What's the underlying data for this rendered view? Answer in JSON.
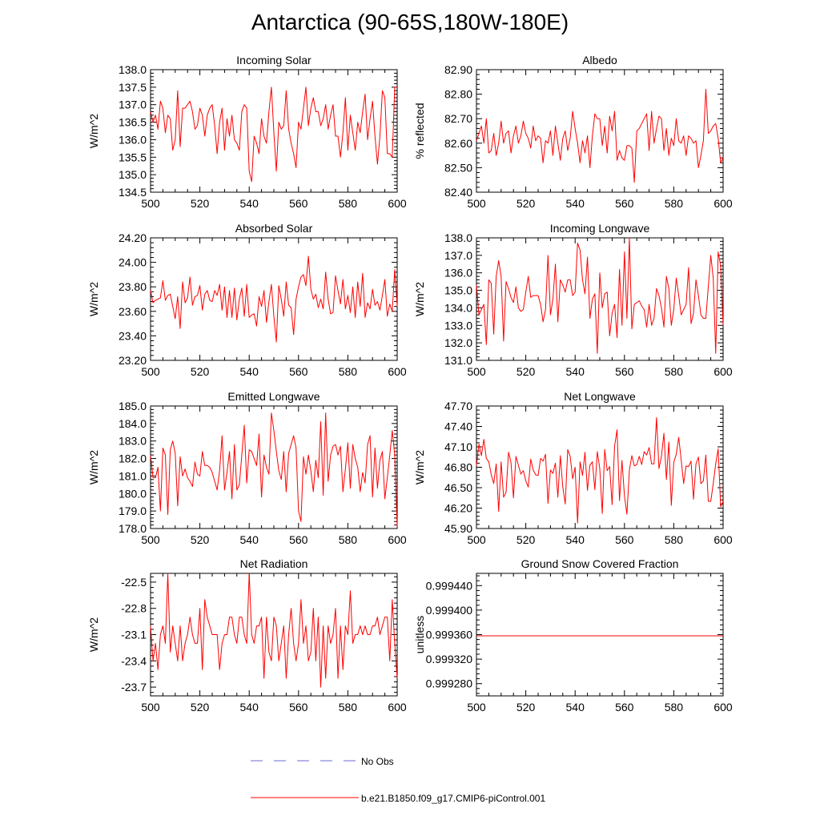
{
  "title": "Antarctica (90-65S,180W-180E)",
  "colors": {
    "series": "#ff0000",
    "obs": "#6b6bd6",
    "axis": "#000000"
  },
  "legend": {
    "obs_label": "No Obs",
    "model_label": "b.e21.B1850.f09_g17.CMIP6-piControl.001"
  },
  "chart_data": [
    {
      "type": "line",
      "title": "Incoming Solar",
      "ylabel": "W/m^2",
      "xlim": [
        500,
        600
      ],
      "ylim": [
        134.5,
        138.0
      ],
      "xticks": [
        500,
        520,
        540,
        560,
        580,
        600
      ],
      "yticks": [
        134.5,
        135.0,
        135.5,
        136.0,
        136.5,
        137.0,
        137.5,
        138.0
      ],
      "ytick_labels": [
        "134.5",
        "135.0",
        "135.5",
        "136.0",
        "136.5",
        "137.0",
        "137.5",
        "138.0"
      ],
      "x_start": 500,
      "values": [
        136.8,
        136.5,
        136.7,
        136.3,
        137.1,
        136.9,
        136.2,
        136.7,
        136.6,
        135.7,
        136.0,
        137.4,
        135.8,
        136.9,
        136.9,
        137.0,
        137.1,
        136.8,
        136.3,
        136.4,
        136.9,
        136.7,
        136.1,
        136.7,
        136.9,
        137.0,
        136.4,
        135.6,
        136.5,
        136.9,
        135.7,
        136.6,
        136.1,
        136.7,
        136.0,
        135.9,
        135.7,
        136.8,
        137.0,
        136.9,
        135.1,
        134.8,
        136.1,
        135.9,
        135.6,
        136.6,
        136.1,
        135.9,
        136.8,
        137.5,
        136.2,
        135.1,
        136.5,
        136.3,
        136.4,
        137.4,
        136.3,
        135.9,
        135.6,
        135.2,
        136.5,
        136.3,
        136.9,
        137.5,
        136.4,
        136.9,
        137.2,
        136.8,
        136.8,
        136.4,
        136.6,
        137.0,
        136.3,
        136.7,
        137.0,
        136.1,
        136.1,
        135.5,
        136.2,
        137.2,
        135.7,
        136.7,
        136.2,
        135.7,
        136.5,
        136.2,
        136.8,
        137.3,
        136.0,
        136.6,
        137.1,
        136.1,
        135.3,
        136.1,
        137.4,
        137.2,
        135.6,
        135.6,
        135.5,
        137.5,
        137.5
      ]
    },
    {
      "type": "line",
      "title": "Albedo",
      "ylabel": "% reflected",
      "xlim": [
        500,
        600
      ],
      "ylim": [
        82.4,
        82.9
      ],
      "xticks": [
        500,
        520,
        540,
        560,
        580,
        600
      ],
      "yticks": [
        82.4,
        82.5,
        82.6,
        82.7,
        82.8,
        82.9
      ],
      "ytick_labels": [
        "82.40",
        "82.50",
        "82.60",
        "82.70",
        "82.80",
        "82.90"
      ],
      "x_start": 500,
      "values": [
        82.61,
        82.64,
        82.67,
        82.6,
        82.7,
        82.56,
        82.57,
        82.64,
        82.55,
        82.6,
        82.69,
        82.6,
        82.64,
        82.65,
        82.56,
        82.63,
        82.67,
        82.6,
        82.63,
        82.69,
        82.64,
        82.62,
        82.58,
        82.67,
        82.61,
        82.63,
        82.62,
        82.52,
        82.61,
        82.6,
        82.65,
        82.55,
        82.67,
        82.6,
        82.53,
        82.62,
        82.65,
        82.57,
        82.62,
        82.73,
        82.66,
        82.6,
        82.52,
        82.61,
        82.56,
        82.63,
        82.5,
        82.63,
        82.72,
        82.7,
        82.7,
        82.59,
        82.67,
        82.56,
        82.71,
        82.65,
        82.73,
        82.53,
        82.57,
        82.54,
        82.53,
        82.59,
        82.59,
        82.58,
        82.44,
        82.65,
        82.66,
        82.68,
        82.7,
        82.72,
        82.57,
        82.73,
        82.6,
        82.66,
        82.71,
        82.7,
        82.57,
        82.66,
        82.55,
        82.62,
        82.59,
        82.7,
        82.61,
        82.6,
        82.63,
        82.55,
        82.63,
        82.62,
        82.6,
        82.61,
        82.5,
        82.55,
        82.61,
        82.82,
        82.64,
        82.65,
        82.67,
        82.68,
        82.62,
        82.52,
        82.54
      ]
    },
    {
      "type": "line",
      "title": "Absorbed Solar",
      "ylabel": "W/m^2",
      "xlim": [
        500,
        600
      ],
      "ylim": [
        23.2,
        24.2
      ],
      "xticks": [
        500,
        520,
        540,
        560,
        580,
        600
      ],
      "yticks": [
        23.2,
        23.4,
        23.6,
        23.8,
        24.0,
        24.2
      ],
      "ytick_labels": [
        "23.20",
        "23.40",
        "23.60",
        "23.80",
        "24.00",
        "24.20"
      ],
      "x_start": 500,
      "values": [
        23.77,
        23.67,
        23.69,
        23.7,
        23.71,
        23.85,
        23.69,
        23.73,
        23.74,
        23.64,
        23.54,
        23.72,
        23.46,
        23.84,
        23.67,
        23.71,
        23.88,
        23.65,
        23.72,
        23.73,
        23.81,
        23.61,
        23.74,
        23.77,
        23.69,
        23.68,
        23.77,
        23.73,
        23.82,
        23.61,
        23.8,
        23.55,
        23.77,
        23.55,
        23.79,
        23.53,
        23.7,
        23.79,
        23.56,
        23.82,
        23.55,
        23.57,
        23.58,
        23.48,
        23.72,
        23.64,
        23.77,
        23.51,
        23.68,
        23.82,
        23.56,
        23.35,
        23.81,
        23.7,
        23.56,
        23.84,
        23.65,
        23.63,
        23.41,
        23.7,
        23.8,
        23.88,
        23.9,
        23.81,
        24.05,
        23.78,
        23.7,
        23.74,
        23.63,
        23.7,
        23.62,
        23.92,
        23.7,
        23.58,
        23.59,
        23.89,
        23.77,
        23.66,
        23.86,
        23.62,
        23.73,
        23.59,
        23.8,
        23.55,
        23.84,
        23.64,
        23.91,
        23.55,
        23.67,
        23.62,
        23.78,
        23.65,
        23.68,
        23.61,
        23.73,
        23.86,
        23.56,
        23.66,
        23.6,
        23.94,
        23.64
      ]
    },
    {
      "type": "line",
      "title": "Incoming Longwave",
      "ylabel": "W/m^2",
      "xlim": [
        500,
        600
      ],
      "ylim": [
        131.0,
        138.0
      ],
      "xticks": [
        500,
        520,
        540,
        560,
        580,
        600
      ],
      "yticks": [
        131.0,
        132.0,
        133.0,
        134.0,
        135.0,
        136.0,
        137.0,
        138.0
      ],
      "ytick_labels": [
        "131.0",
        "132.0",
        "133.0",
        "134.0",
        "135.0",
        "136.0",
        "137.0",
        "138.0"
      ],
      "x_start": 500,
      "values": [
        135.3,
        133.6,
        133.9,
        134.2,
        131.9,
        135.6,
        135.4,
        132.5,
        135.8,
        136.7,
        135.8,
        132.1,
        135.5,
        135.1,
        134.6,
        134.3,
        135.2,
        134.0,
        133.8,
        133.9,
        134.9,
        135.8,
        134.6,
        134.7,
        134.7,
        134.7,
        134.2,
        133.2,
        133.9,
        137.0,
        133.6,
        134.5,
        136.5,
        133.2,
        135.6,
        135.3,
        134.9,
        135.6,
        135.6,
        134.7,
        134.9,
        137.7,
        137.3,
        135.6,
        134.8,
        136.9,
        133.4,
        134.5,
        134.8,
        131.4,
        136.0,
        134.0,
        134.8,
        134.9,
        132.4,
        133.7,
        134.2,
        132.3,
        136.2,
        133.0,
        137.2,
        133.4,
        138.0,
        132.8,
        134.2,
        134.3,
        134.4,
        134.1,
        133.9,
        132.9,
        134.2,
        133.0,
        133.4,
        135.1,
        134.7,
        134.0,
        132.9,
        135.8,
        135.1,
        133.0,
        133.9,
        135.7,
        134.7,
        133.6,
        133.9,
        134.2,
        136.3,
        133.1,
        133.7,
        135.6,
        134.7,
        133.6,
        133.4,
        133.4,
        135.2,
        137.0,
        135.7,
        131.4,
        137.2,
        136.4,
        133.0
      ]
    },
    {
      "type": "line",
      "title": "Emitted Longwave",
      "ylabel": "W/m^2",
      "xlim": [
        500,
        600
      ],
      "ylim": [
        178.0,
        185.0
      ],
      "xticks": [
        500,
        520,
        540,
        560,
        580,
        600
      ],
      "yticks": [
        178.0,
        179.0,
        180.0,
        181.0,
        182.0,
        183.0,
        184.0,
        185.0
      ],
      "ytick_labels": [
        "178.0",
        "179.0",
        "180.0",
        "181.0",
        "182.0",
        "183.0",
        "184.0",
        "185.0"
      ],
      "x_start": 500,
      "values": [
        182.2,
        180.9,
        180.9,
        181.5,
        179.0,
        182.6,
        182.2,
        178.8,
        182.5,
        183.0,
        182.3,
        179.3,
        182.1,
        181.0,
        181.4,
        180.9,
        180.7,
        180.4,
        181.8,
        181.1,
        181.0,
        182.4,
        181.6,
        181.6,
        181.5,
        181.2,
        180.7,
        180.2,
        181.3,
        183.3,
        180.2,
        181.2,
        182.4,
        179.7,
        182.8,
        180.2,
        180.5,
        182.2,
        183.9,
        180.6,
        182.5,
        182.4,
        182.0,
        181.6,
        183.4,
        179.8,
        182.2,
        181.5,
        181.1,
        184.6,
        183.6,
        182.4,
        181.3,
        180.8,
        182.4,
        180.1,
        182.3,
        182.8,
        183.3,
        182.6,
        179.0,
        178.4,
        182.1,
        181.1,
        182.2,
        181.3,
        180.1,
        181.9,
        180.9,
        184.1,
        179.9,
        184.6,
        180.7,
        182.2,
        182.7,
        182.8,
        182.2,
        182.7,
        180.1,
        181.4,
        182.9,
        180.3,
        182.8,
        182.0,
        181.5,
        180.1,
        181.2,
        180.6,
        182.8,
        183.3,
        179.8,
        182.6,
        180.3,
        181.9,
        182.4,
        179.7,
        180.9,
        182.2,
        183.6,
        182.2,
        178.1
      ]
    },
    {
      "type": "line",
      "title": "Net Longwave",
      "ylabel": "W/m^2",
      "xlim": [
        500,
        600
      ],
      "ylim": [
        45.9,
        47.7
      ],
      "xticks": [
        500,
        520,
        540,
        560,
        580,
        600
      ],
      "yticks": [
        45.9,
        46.2,
        46.5,
        46.8,
        47.1,
        47.4,
        47.7
      ],
      "ytick_labels": [
        "45.90",
        "46.20",
        "46.50",
        "46.80",
        "47.10",
        "47.40",
        "47.70"
      ],
      "x_start": 500,
      "values": [
        46.82,
        47.14,
        46.97,
        47.21,
        46.93,
        46.88,
        46.69,
        46.56,
        46.85,
        46.15,
        46.88,
        46.36,
        46.43,
        47.02,
        46.87,
        46.35,
        46.96,
        46.83,
        46.7,
        46.75,
        46.6,
        46.51,
        46.92,
        46.76,
        46.69,
        46.68,
        46.93,
        46.89,
        46.99,
        46.27,
        46.76,
        46.71,
        46.86,
        46.36,
        46.97,
        46.51,
        46.26,
        47.06,
        46.96,
        46.63,
        46.8,
        45.98,
        46.88,
        46.68,
        47.02,
        46.46,
        46.83,
        46.88,
        46.47,
        47.03,
        46.78,
        46.12,
        47.06,
        46.75,
        46.81,
        46.25,
        47.11,
        47.35,
        46.31,
        46.9,
        46.38,
        46.11,
        46.76,
        46.97,
        46.82,
        46.84,
        46.96,
        46.84,
        47.03,
        46.98,
        47.09,
        46.85,
        46.85,
        47.53,
        46.78,
        46.96,
        47.3,
        46.62,
        47.17,
        46.24,
        46.87,
        46.99,
        47.24,
        46.91,
        46.56,
        46.82,
        46.81,
        46.89,
        46.33,
        46.85,
        46.95,
        46.56,
        46.6,
        46.98,
        46.3,
        46.3,
        46.56,
        46.85,
        47.07,
        46.22,
        46.3
      ]
    },
    {
      "type": "line",
      "title": "Net Radiation",
      "ylabel": "W/m^2",
      "xlim": [
        500,
        600
      ],
      "ylim": [
        -23.8,
        -22.4
      ],
      "xticks": [
        500,
        520,
        540,
        560,
        580,
        600
      ],
      "yticks": [
        -23.7,
        -23.4,
        -23.1,
        -22.8,
        -22.5
      ],
      "ytick_labels": [
        "-23.7",
        "-23.4",
        "-23.1",
        "-22.8",
        "-22.5"
      ],
      "x_start": 500,
      "values": [
        -23.0,
        -23.4,
        -23.2,
        -23.5,
        -23.1,
        -23.0,
        -23.2,
        -22.4,
        -23.3,
        -23.0,
        -23.2,
        -23.4,
        -23.0,
        -23.4,
        -23.2,
        -23.1,
        -22.9,
        -23.1,
        -23.2,
        -23.2,
        -22.8,
        -23.5,
        -22.7,
        -22.9,
        -23.0,
        -23.1,
        -23.1,
        -23.1,
        -23.5,
        -23.2,
        -23.1,
        -23.1,
        -22.9,
        -22.9,
        -23.1,
        -23.2,
        -22.9,
        -22.9,
        -23.1,
        -23.2,
        -22.4,
        -23.1,
        -23.2,
        -23.0,
        -23.0,
        -22.9,
        -23.6,
        -22.9,
        -23.3,
        -23.4,
        -22.9,
        -23.0,
        -23.4,
        -23.2,
        -23.0,
        -23.6,
        -23.1,
        -22.8,
        -23.2,
        -23.4,
        -23.2,
        -22.7,
        -23.2,
        -23.0,
        -23.4,
        -23.3,
        -22.8,
        -23.4,
        -22.9,
        -23.7,
        -23.0,
        -23.6,
        -23.0,
        -23.2,
        -23.1,
        -22.8,
        -23.6,
        -23.0,
        -23.5,
        -23.0,
        -23.1,
        -22.6,
        -23.2,
        -23.1,
        -23.1,
        -23.0,
        -23.1,
        -23.0,
        -23.1,
        -23.1,
        -23.0,
        -23.0,
        -22.9,
        -23.1,
        -23.0,
        -22.9,
        -22.9,
        -23.4,
        -22.7,
        -23.2,
        -23.6
      ]
    },
    {
      "type": "line",
      "title": "Ground Snow Covered Fraction",
      "ylabel": "unitless",
      "xlim": [
        500,
        600
      ],
      "ylim": [
        0.99926,
        0.99946
      ],
      "xticks": [
        500,
        520,
        540,
        560,
        580,
        600
      ],
      "yticks": [
        0.99928,
        0.99932,
        0.99936,
        0.9994,
        0.99944
      ],
      "ytick_labels": [
        "0.999280",
        "0.999320",
        "0.999360",
        "0.999400",
        "0.999440"
      ],
      "x_start": 500,
      "constant_value": 0.999358
    }
  ]
}
